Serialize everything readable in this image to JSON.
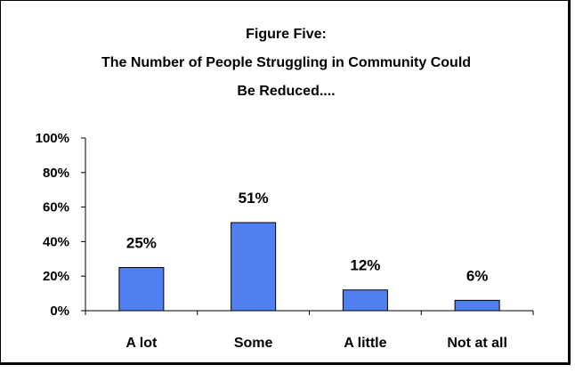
{
  "chart_data": {
    "type": "bar",
    "title_lines": [
      "Figure Five:",
      "The Number of People Struggling in Community Could",
      "Be Reduced...."
    ],
    "categories": [
      "A lot",
      "Some",
      "A little",
      "Not at all"
    ],
    "values": [
      25,
      51,
      12,
      6
    ],
    "data_labels": [
      "25%",
      "51%",
      "12%",
      "6%"
    ],
    "y_ticks": [
      "0%",
      "20%",
      "40%",
      "60%",
      "80%",
      "100%"
    ],
    "ylim": [
      0,
      100
    ],
    "xlabel": "",
    "ylabel": "",
    "grid": false,
    "legend": "none",
    "bar_color": "#4F7FF0",
    "bar_edge_color": "#000000"
  }
}
